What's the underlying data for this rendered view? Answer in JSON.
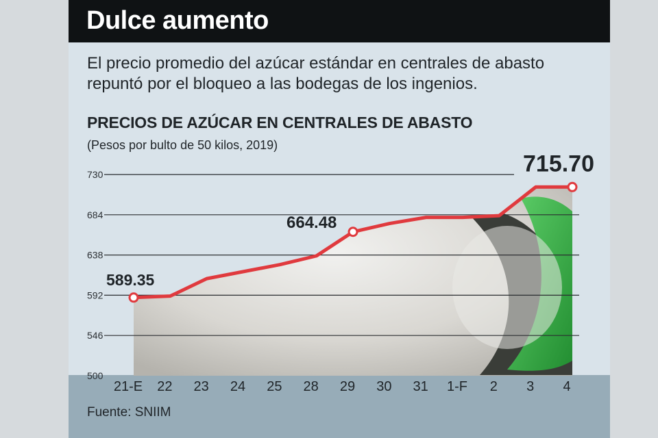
{
  "header": {
    "title": "Dulce aumento"
  },
  "subtitle": "El precio promedio del azúcar estándar en centrales de abasto repuntó por el bloqueo a las bodegas de los ingenios.",
  "footer": {
    "source": "Fuente: SNIIM"
  },
  "colors": {
    "line": "#e03a3e",
    "header_bg": "#0f1214",
    "panel_bg": "#d9e3ea",
    "footer_bg": "#97acb8",
    "bucket": "#37b34a"
  },
  "chart_data": {
    "type": "area",
    "title": "PRECIOS DE AZÚCAR EN CENTRALES DE ABASTO",
    "subtitle": "(Pesos por bulto de 50 kilos, 2019)",
    "categories": [
      "21-E",
      "22",
      "23",
      "24",
      "25",
      "28",
      "29",
      "30",
      "31",
      "1-F",
      "2",
      "3",
      "4"
    ],
    "values": [
      589.35,
      591,
      611,
      619,
      627,
      637,
      664.48,
      674,
      681,
      681,
      683,
      715.7,
      715.7
    ],
    "yticks": [
      500,
      546,
      592,
      638,
      684,
      730
    ],
    "ylim": [
      500,
      730
    ],
    "grid": true,
    "data_labels": [
      {
        "text": "589.35",
        "index": 0
      },
      {
        "text": "664.48",
        "index": 6
      },
      {
        "text": "715.70",
        "index": 12
      }
    ]
  }
}
